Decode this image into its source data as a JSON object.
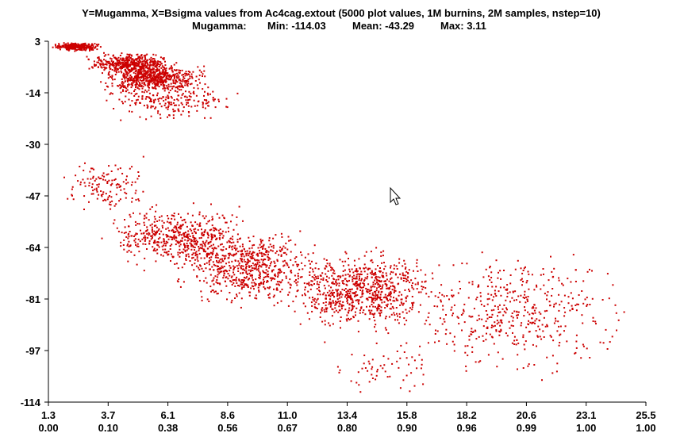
{
  "chart_data": {
    "type": "scatter",
    "title": "Y=Mugamma, X=Bsigma values from Ac4cag.extout  (5000 plot values, 1M burnins, 2M samples, nstep=10)",
    "subtitle": {
      "label": "Mugamma:",
      "min": "Min: -114.03",
      "mean": "Mean: -43.29",
      "max": "Max: 3.11"
    },
    "xlim": [
      1.3,
      25.5
    ],
    "ylim": [
      -114,
      3
    ],
    "y_ticks": [
      "3",
      "-14",
      "-30",
      "-47",
      "-64",
      "-81",
      "-97",
      "-114"
    ],
    "x_ticks": [
      "1.3",
      "3.7",
      "6.1",
      "8.6",
      "11.0",
      "13.4",
      "15.8",
      "18.2",
      "20.6",
      "23.1",
      "25.5"
    ],
    "x_ticks_secondary": [
      "0.00",
      "0.10",
      "0.38",
      "0.56",
      "0.67",
      "0.80",
      "0.90",
      "0.96",
      "0.99",
      "1.00",
      "1.00"
    ],
    "point_color": "#cc0000",
    "clusters": [
      {
        "x": [
          1.3,
          3.5
        ],
        "y": [
          3,
          0
        ],
        "n": 300
      },
      {
        "x": [
          2.5,
          6.6
        ],
        "y": [
          0,
          -8
        ],
        "n": 420
      },
      {
        "x": [
          3.0,
          8.0
        ],
        "y": [
          -3,
          -14
        ],
        "n": 600
      },
      {
        "x": [
          3.0,
          9.5
        ],
        "y": [
          -8,
          -24
        ],
        "n": 230
      },
      {
        "x": [
          1.3,
          6.0
        ],
        "y": [
          -32,
          -55
        ],
        "n": 130
      },
      {
        "x": [
          3.0,
          10.0
        ],
        "y": [
          -48,
          -72
        ],
        "n": 520
      },
      {
        "x": [
          6.0,
          13.0
        ],
        "y": [
          -55,
          -85
        ],
        "n": 640
      },
      {
        "x": [
          10.0,
          18.0
        ],
        "y": [
          -62,
          -93
        ],
        "n": 780
      },
      {
        "x": [
          15.0,
          25.5
        ],
        "y": [
          -62,
          -108
        ],
        "n": 460
      },
      {
        "x": [
          12.0,
          18.0
        ],
        "y": [
          -90,
          -114
        ],
        "n": 60
      }
    ]
  }
}
